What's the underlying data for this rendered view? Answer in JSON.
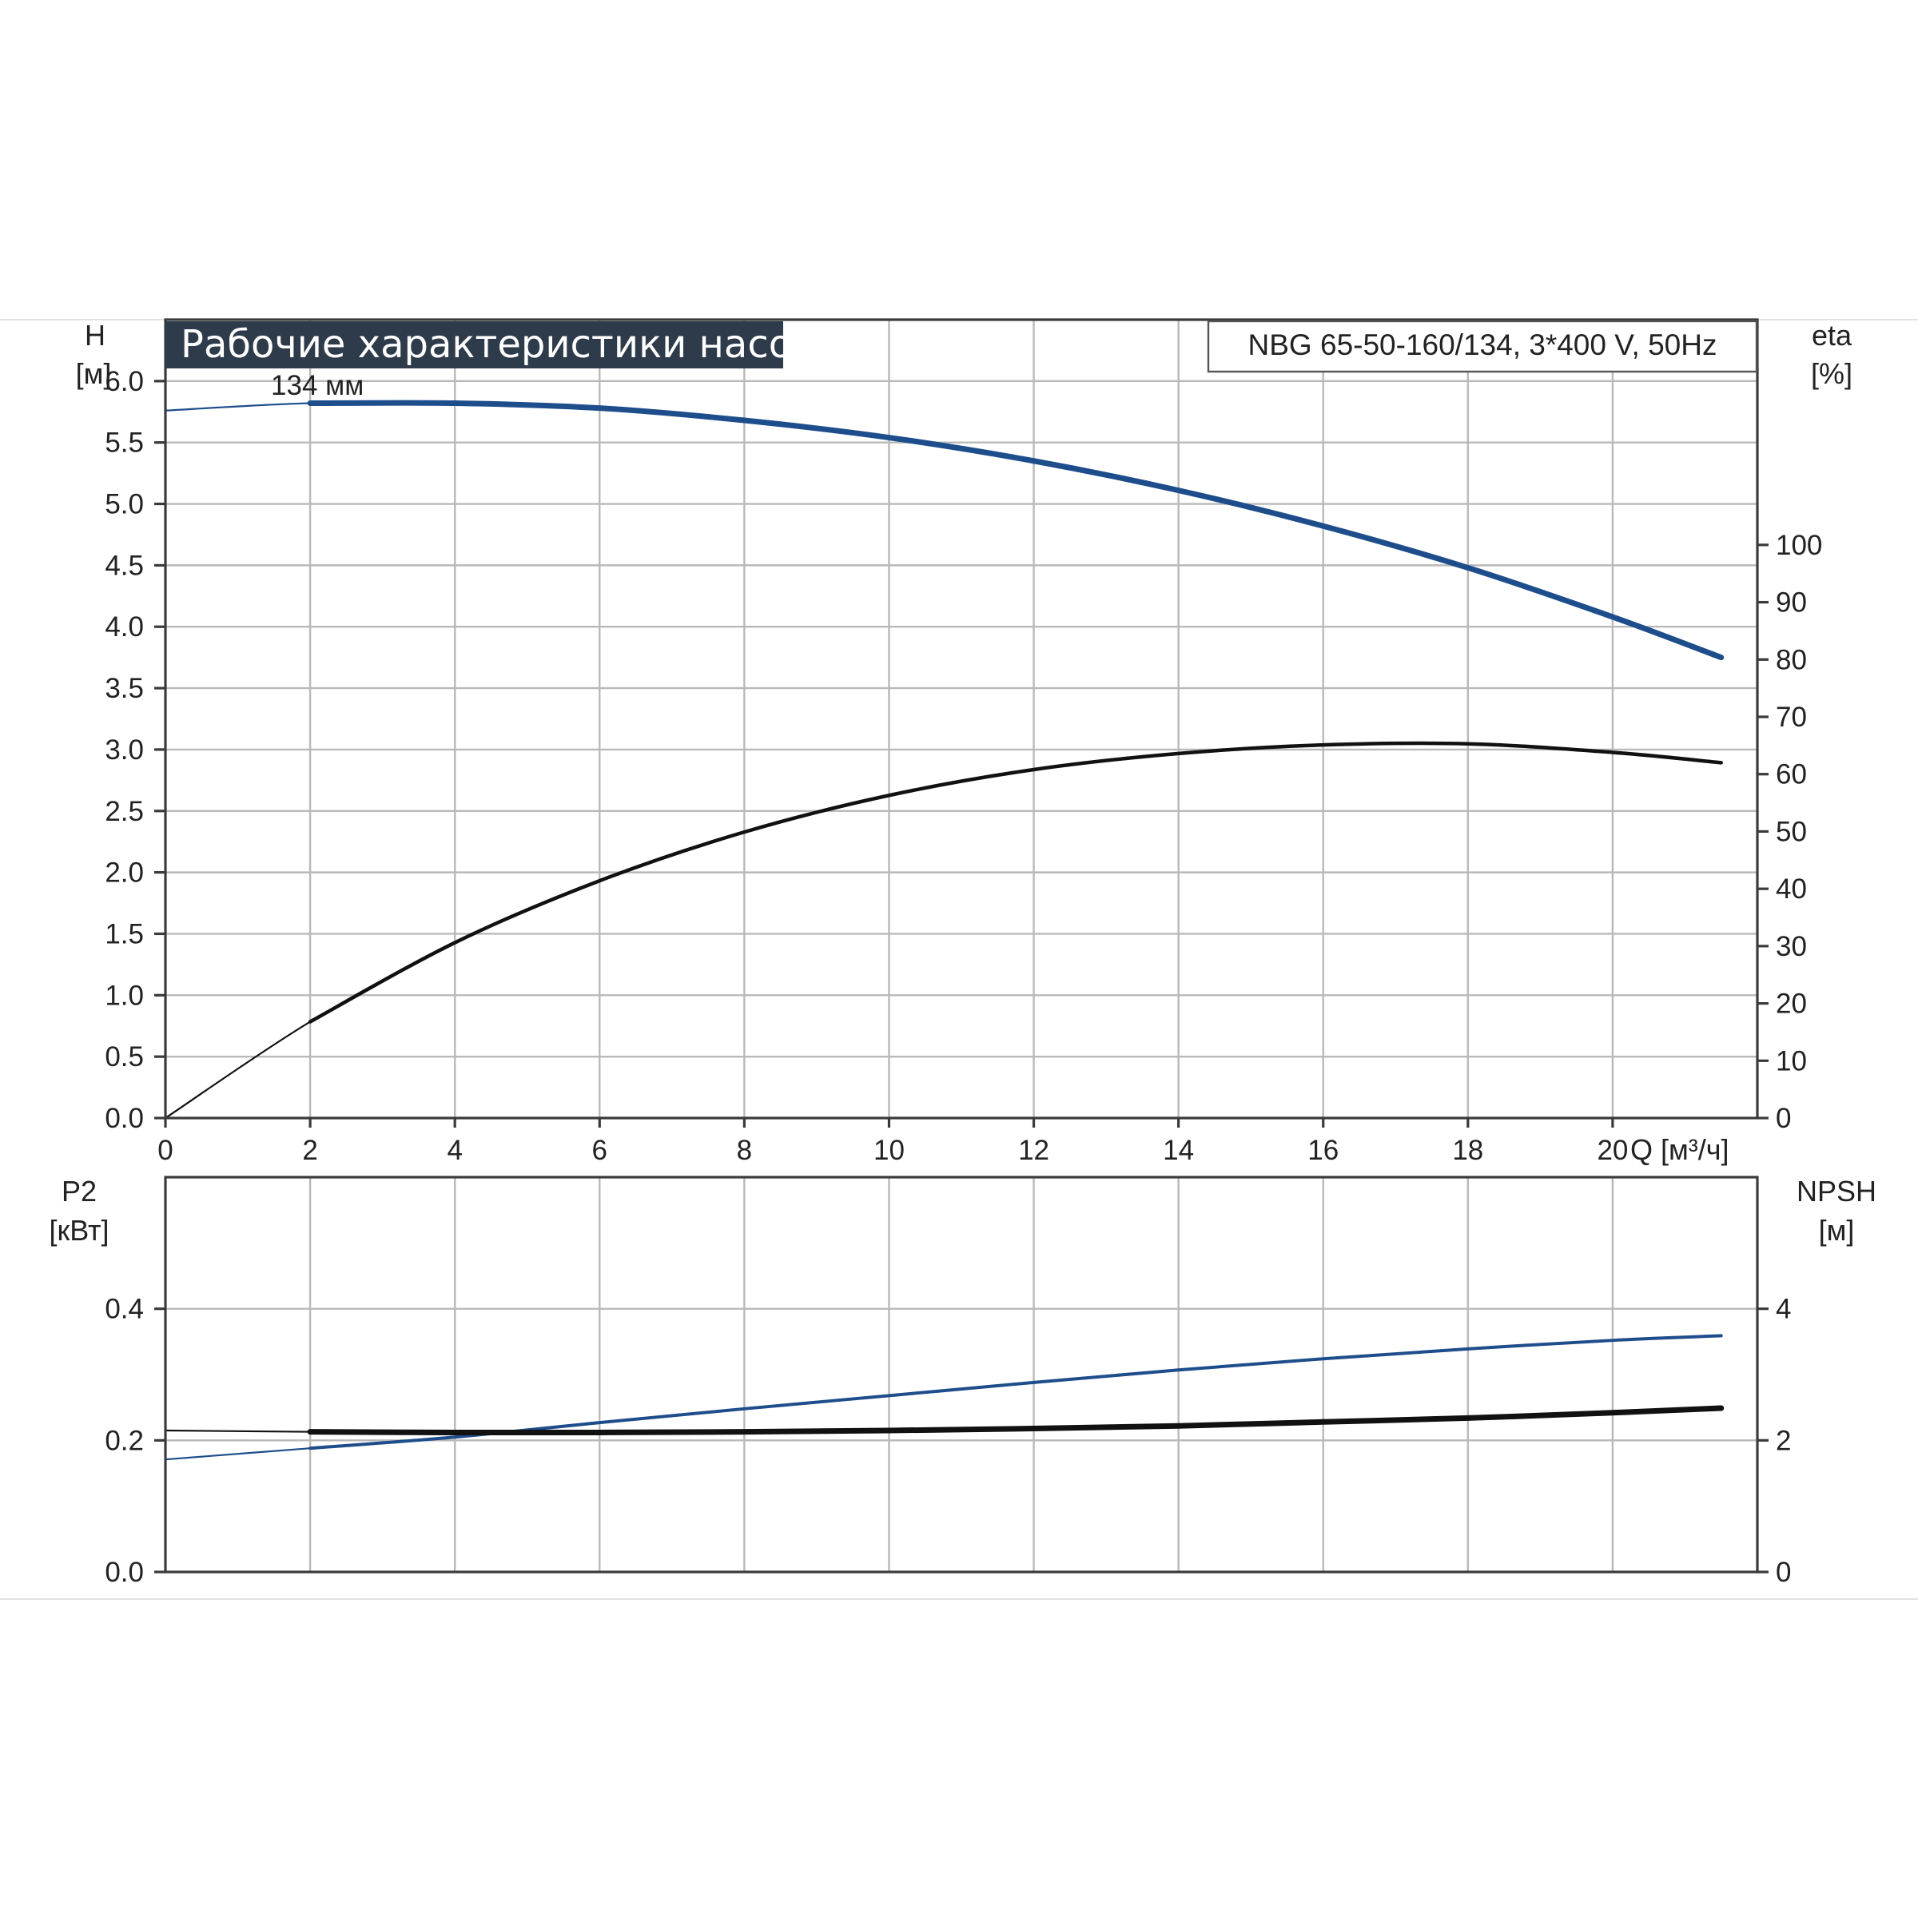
{
  "title": "Рабочие характеристики насоса",
  "model": "NBG 65-50-160/134, 3*400 V, 50Hz",
  "colors": {
    "title_bg": "#2e3b4a",
    "blue_curve": "#1e4d8c",
    "black_curve": "#111111",
    "grid": "#b9b9b9"
  },
  "chart_data": [
    {
      "type": "line",
      "panel": "upper",
      "x_label": "Q [м³/ч]",
      "xlim": [
        0,
        22
      ],
      "x_ticks": [
        0,
        2,
        4,
        6,
        8,
        10,
        12,
        14,
        16,
        18,
        20
      ],
      "y_left": {
        "label_line1": "H",
        "label_line2": "[м]",
        "lim": [
          0,
          6.5
        ],
        "ticks": [
          "0.0",
          "0.5",
          "1.0",
          "1.5",
          "2.0",
          "2.5",
          "3.0",
          "3.5",
          "4.0",
          "4.5",
          "5.0",
          "5.5",
          "6.0"
        ]
      },
      "y_right": {
        "label_line1": "eta",
        "label_line2": "[%]",
        "lim": [
          0,
          139.3
        ],
        "ticks": [
          0,
          10,
          20,
          30,
          40,
          50,
          60,
          70,
          80,
          90,
          100
        ]
      },
      "grid": true,
      "annotations": [
        {
          "text": "134 мм",
          "x": 2.1,
          "y": 5.85
        }
      ],
      "series": [
        {
          "name": "H",
          "axis": "left",
          "color": "#1e4d8c",
          "x": [
            0,
            2,
            4,
            6,
            8,
            10,
            12,
            14,
            16,
            18,
            20,
            21.5
          ],
          "y": [
            5.76,
            5.82,
            5.82,
            5.78,
            5.68,
            5.54,
            5.35,
            5.11,
            4.82,
            4.48,
            4.08,
            3.75
          ]
        },
        {
          "name": "eta",
          "axis": "right",
          "color": "#111111",
          "x": [
            0,
            2,
            4,
            6,
            8,
            10,
            12,
            14,
            16,
            18,
            20,
            21.5
          ],
          "y": [
            0,
            16.8,
            30.6,
            41.4,
            49.9,
            56.3,
            60.8,
            63.6,
            65.1,
            65.3,
            63.8,
            62.0
          ]
        }
      ]
    },
    {
      "type": "line",
      "panel": "lower",
      "xlim": [
        0,
        22
      ],
      "y_left": {
        "label_line1": "P2",
        "label_line2": "[кВт]",
        "lim": [
          0,
          0.6
        ],
        "ticks": [
          "0.0",
          "0.2",
          "0.4"
        ]
      },
      "y_right": {
        "label_line1": "NPSH",
        "label_line2": "[м]",
        "lim": [
          0,
          6
        ],
        "ticks": [
          0,
          2,
          4
        ]
      },
      "grid": true,
      "series": [
        {
          "name": "P2",
          "axis": "left",
          "color": "#1e4d8c",
          "x": [
            0,
            2,
            4,
            6,
            8,
            10,
            12,
            14,
            16,
            18,
            20,
            21.5
          ],
          "y": [
            0.171,
            0.188,
            0.205,
            0.227,
            0.248,
            0.268,
            0.288,
            0.307,
            0.324,
            0.339,
            0.352,
            0.359
          ]
        },
        {
          "name": "NPSH",
          "axis": "right",
          "color": "#111111",
          "x": [
            0,
            2,
            4,
            6,
            8,
            10,
            12,
            14,
            16,
            18,
            20,
            21.5
          ],
          "y": [
            2.15,
            2.13,
            2.12,
            2.12,
            2.13,
            2.15,
            2.18,
            2.22,
            2.28,
            2.34,
            2.42,
            2.49
          ]
        }
      ]
    }
  ]
}
